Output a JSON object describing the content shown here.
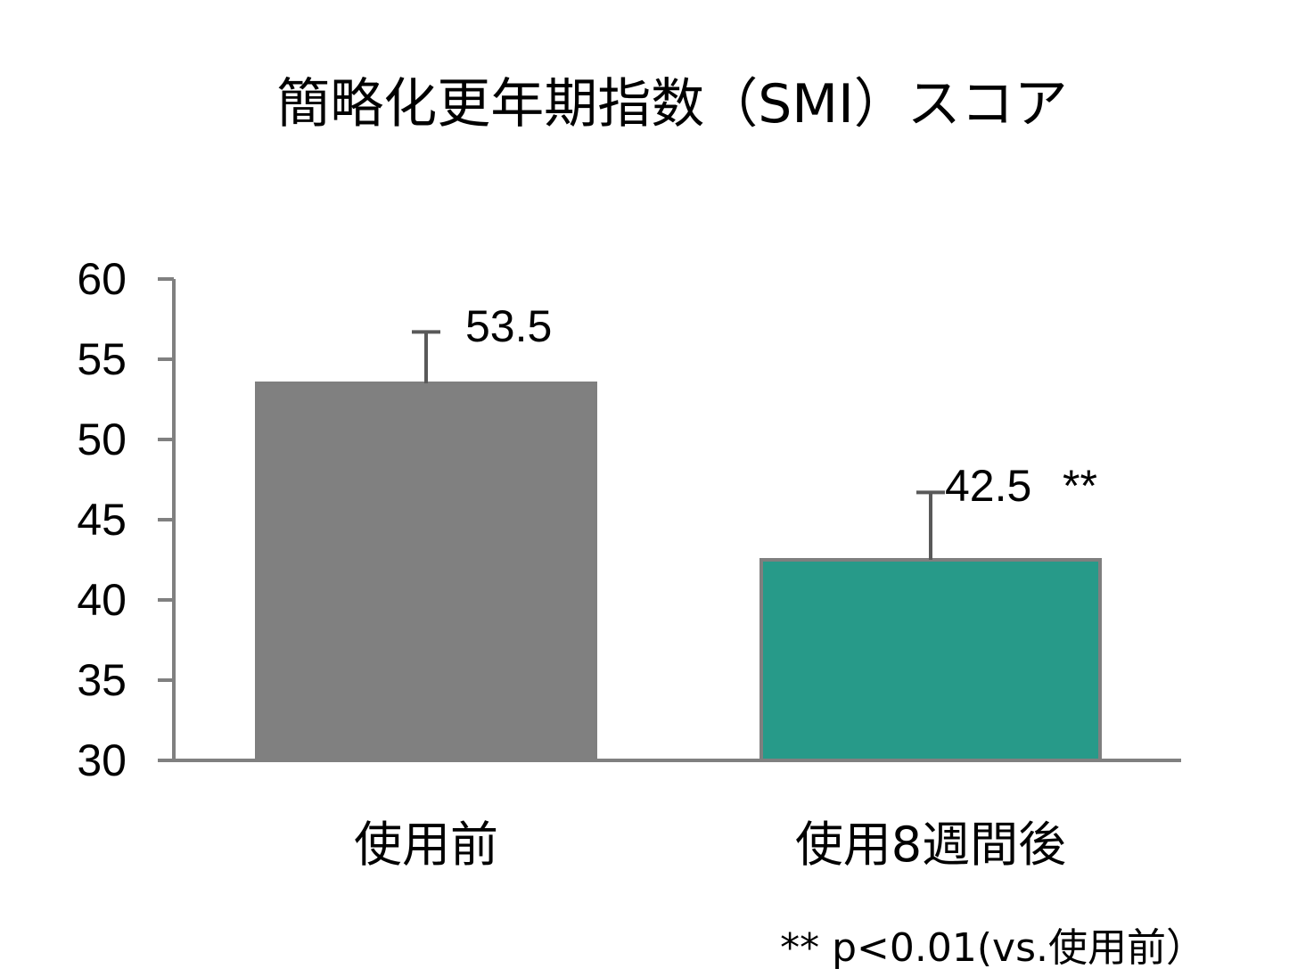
{
  "chart_data": {
    "type": "bar",
    "title": "簡略化更年期指数（SMI）スコア",
    "xlabel": "",
    "ylabel": "",
    "ylim": [
      30,
      60
    ],
    "yticks": [
      30,
      35,
      40,
      45,
      50,
      55,
      60
    ],
    "categories": [
      "使用前",
      "使用8週間後"
    ],
    "values": [
      53.5,
      42.5
    ],
    "error_upper": [
      56.7,
      46.7
    ],
    "value_labels": [
      "53.5",
      "42.5"
    ],
    "significance_marks": [
      "",
      "**"
    ],
    "colors": [
      "#808080",
      "#279a89"
    ],
    "bar_edge_color": "#7f7f7f",
    "axis_color": "#808080",
    "errorbar_color": "#595959",
    "grid": false,
    "legend": "none",
    "annotation": "** p<0.01(vs.使用前）"
  }
}
